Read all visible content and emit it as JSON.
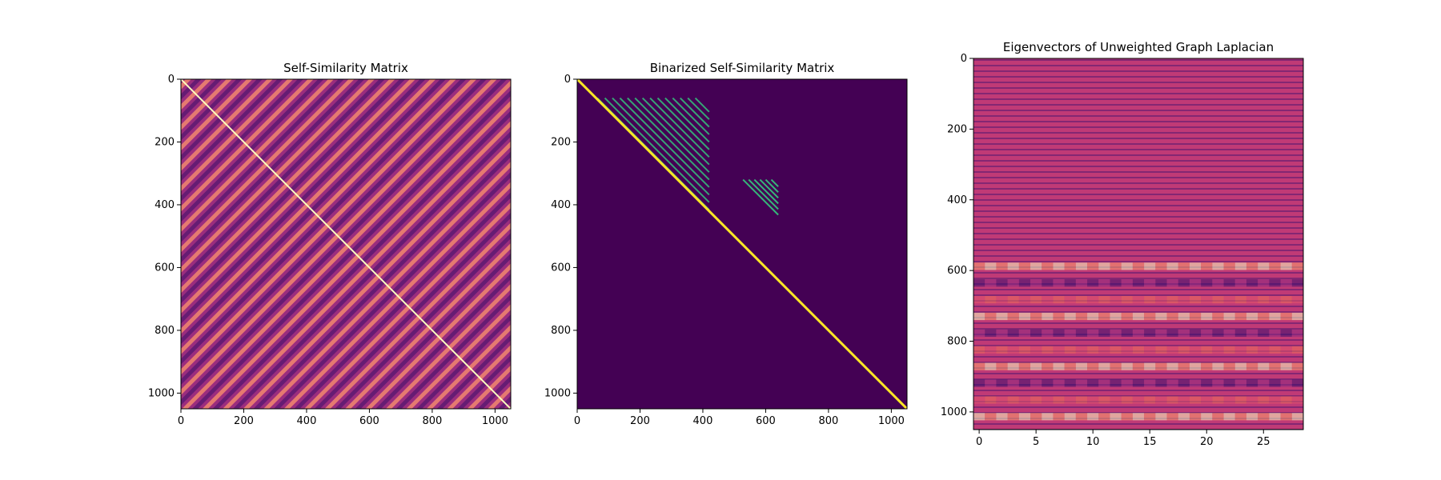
{
  "chart_data": [
    {
      "type": "heatmap",
      "title": "Self-Similarity Matrix",
      "colormap": "magma",
      "xlim": [
        0,
        1050
      ],
      "ylim": [
        1050,
        0
      ],
      "x_ticks": [
        0,
        200,
        400,
        600,
        800,
        1000
      ],
      "y_ticks": [
        0,
        200,
        400,
        600,
        800,
        1000
      ],
      "grid": false
    },
    {
      "type": "heatmap",
      "title": "Binarized Self-Similarity Matrix",
      "colormap": "viridis",
      "xlim": [
        0,
        1050
      ],
      "ylim": [
        1050,
        0
      ],
      "x_ticks": [
        0,
        200,
        400,
        600,
        800,
        1000
      ],
      "y_ticks": [
        0,
        200,
        400,
        600,
        800,
        1000
      ],
      "grid": false
    },
    {
      "type": "heatmap",
      "title": "Eigenvectors of Unweighted Graph Laplacian",
      "colormap": "magma",
      "xlim": [
        -0.5,
        28.5
      ],
      "ylim": [
        1050,
        0
      ],
      "x_ticks": [
        0,
        5,
        10,
        15,
        20,
        25
      ],
      "y_ticks": [
        0,
        200,
        400,
        600,
        800,
        1000
      ],
      "grid": false
    }
  ],
  "colors": {
    "magma_dark": "#3b0f70",
    "magma_mid": "#b73779",
    "magma_bright": "#fcfdbf",
    "viridis_background": "#440154",
    "viridis_line": "#fde725"
  }
}
